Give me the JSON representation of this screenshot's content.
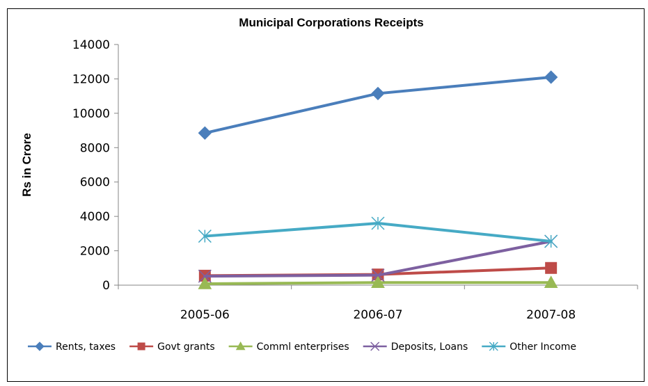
{
  "chart_data": {
    "type": "line",
    "title": "Municipal Corporations Receipts",
    "xlabel": "",
    "ylabel": "Rs in Crore",
    "categories": [
      "2005-06",
      "2006-07",
      "2007-08"
    ],
    "ylim": [
      0,
      14000
    ],
    "yticks": [
      0,
      2000,
      4000,
      6000,
      8000,
      10000,
      12000,
      14000
    ],
    "grid": false,
    "legend_position": "bottom",
    "series": [
      {
        "name": "Rents, taxes",
        "values": [
          8850,
          11150,
          12100
        ],
        "color": "#4A7EBB",
        "marker": "diamond"
      },
      {
        "name": "Govt grants",
        "values": [
          550,
          620,
          1000
        ],
        "color": "#BE4B48",
        "marker": "square"
      },
      {
        "name": "Comml enterprises",
        "values": [
          80,
          150,
          150
        ],
        "color": "#98B954",
        "marker": "triangle"
      },
      {
        "name": "Deposits, Loans",
        "values": [
          520,
          580,
          2550
        ],
        "color": "#7D60A0",
        "marker": "x"
      },
      {
        "name": "Other Income",
        "values": [
          2850,
          3600,
          2550
        ],
        "color": "#46AAC5",
        "marker": "star"
      }
    ]
  }
}
